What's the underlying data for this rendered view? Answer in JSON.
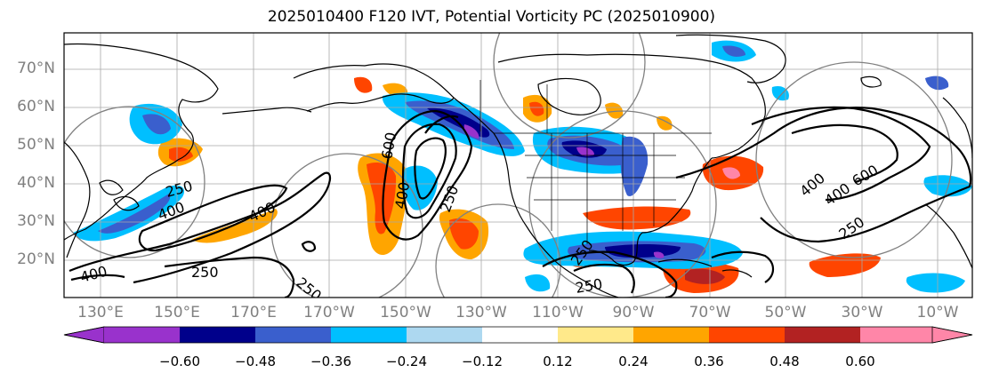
{
  "title": "2025010400 F120 IVT, Potential Vorticity PC (2025010900)",
  "map": {
    "projection": "Mercator",
    "region": "North Pacific to North Atlantic",
    "lat_labels": [
      "70°N",
      "60°N",
      "50°N",
      "40°N",
      "30°N",
      "20°N"
    ],
    "lon_labels": [
      "130°E",
      "150°E",
      "170°E",
      "170°W",
      "150°W",
      "130°W",
      "110°W",
      "90°W",
      "70°W",
      "50°W",
      "30°W",
      "10°W"
    ],
    "ivt_contour_labels": [
      "250",
      "400",
      "400",
      "250",
      "400",
      "250",
      "600",
      "400",
      "250",
      "250",
      "400",
      "250",
      "400",
      "600",
      "250"
    ]
  },
  "colorbar": {
    "ticks": [
      "−0.60",
      "−0.48",
      "−0.36",
      "−0.24",
      "−0.12",
      "0.12",
      "0.24",
      "0.36",
      "0.48",
      "0.60"
    ],
    "colors": [
      "#9932cc",
      "#00008b",
      "#3a5fcd",
      "#00bfff",
      "#add8f0",
      "#ffffff",
      "#ffe98a",
      "#ffa500",
      "#ff4500",
      "#b22222",
      "#ff86a8"
    ]
  }
}
